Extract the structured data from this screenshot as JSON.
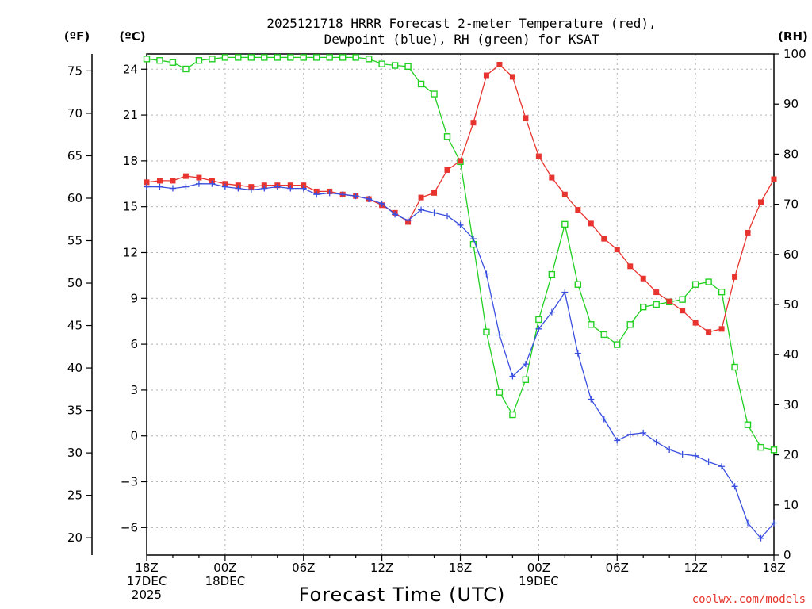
{
  "chart_data": {
    "type": "line",
    "title_lines": [
      "2025121718 HRRR Forecast 2-meter Temperature (red),",
      "Dewpoint (blue), RH (green) for KSAT"
    ],
    "xlabel": "Forecast Time (UTC)",
    "watermark": "coolwx.com/models",
    "units": {
      "fahrenheit": "(ºF)",
      "celsius": "(ºC)",
      "rh": "(RH)"
    },
    "x_range_hours": [
      0,
      48
    ],
    "celsius_axis": {
      "range": [
        -7.8,
        25
      ],
      "ticks": [
        24,
        21,
        18,
        15,
        12,
        9,
        6,
        3,
        0,
        -3,
        -6
      ]
    },
    "fahrenheit_axis": {
      "ticks": [
        75,
        70,
        65,
        60,
        55,
        50,
        45,
        40,
        35,
        30,
        25,
        20
      ]
    },
    "rh_axis": {
      "range": [
        0,
        100
      ],
      "ticks": [
        100,
        90,
        80,
        70,
        60,
        50,
        40,
        30,
        20,
        10,
        0
      ]
    },
    "x_ticks": [
      {
        "hour": 0,
        "lines": [
          "18Z",
          "17DEC",
          "2025"
        ]
      },
      {
        "hour": 6,
        "lines": [
          "00Z",
          "18DEC"
        ]
      },
      {
        "hour": 12,
        "lines": [
          "06Z"
        ]
      },
      {
        "hour": 18,
        "lines": [
          "12Z"
        ]
      },
      {
        "hour": 24,
        "lines": [
          "18Z"
        ]
      },
      {
        "hour": 30,
        "lines": [
          "00Z",
          "19DEC"
        ]
      },
      {
        "hour": 36,
        "lines": [
          "06Z"
        ]
      },
      {
        "hour": 42,
        "lines": [
          "12Z"
        ]
      },
      {
        "hour": 48,
        "lines": [
          "18Z"
        ]
      }
    ],
    "series": [
      {
        "name": "2-meter Temperature",
        "unit": "C",
        "axis": "celsius",
        "color": "#e8342f",
        "marker": "filled-square",
        "hours": [
          0,
          1,
          2,
          3,
          4,
          5,
          6,
          7,
          8,
          9,
          10,
          11,
          12,
          13,
          14,
          15,
          16,
          17,
          18,
          19,
          20,
          21,
          22,
          23,
          24,
          25,
          26,
          27,
          28,
          29,
          30,
          31,
          32,
          33,
          34,
          35,
          36,
          37,
          38,
          39,
          40,
          41,
          42,
          43,
          44,
          45,
          46,
          47,
          48
        ],
        "values": [
          16.6,
          16.7,
          16.7,
          17.0,
          16.9,
          16.7,
          16.5,
          16.4,
          16.3,
          16.4,
          16.4,
          16.4,
          16.4,
          16.0,
          16.0,
          15.8,
          15.7,
          15.5,
          15.1,
          14.6,
          14.0,
          15.6,
          15.9,
          17.4,
          18.0,
          20.5,
          23.6,
          24.3,
          23.5,
          20.8,
          18.3,
          16.9,
          15.8,
          14.8,
          13.9,
          12.9,
          12.2,
          11.1,
          10.3,
          9.4,
          8.8,
          8.2,
          7.4,
          6.8,
          7.0,
          10.4,
          13.3,
          15.3,
          16.8
        ]
      },
      {
        "name": "Dewpoint",
        "unit": "C",
        "axis": "celsius",
        "color": "#3a4fe0",
        "marker": "plus",
        "hours": [
          0,
          1,
          2,
          3,
          4,
          5,
          6,
          7,
          8,
          9,
          10,
          11,
          12,
          13,
          14,
          15,
          16,
          17,
          18,
          19,
          20,
          21,
          22,
          23,
          24,
          25,
          26,
          27,
          28,
          29,
          30,
          31,
          32,
          33,
          34,
          35,
          36,
          37,
          38,
          39,
          40,
          41,
          42,
          43,
          44,
          45,
          46,
          47,
          48
        ],
        "values": [
          16.3,
          16.3,
          16.2,
          16.3,
          16.5,
          16.5,
          16.3,
          16.2,
          16.1,
          16.2,
          16.3,
          16.2,
          16.2,
          15.8,
          15.9,
          15.8,
          15.7,
          15.5,
          15.2,
          14.5,
          14.1,
          14.8,
          14.6,
          14.4,
          13.8,
          12.9,
          10.6,
          6.6,
          3.9,
          4.7,
          7.0,
          8.1,
          9.4,
          5.4,
          2.4,
          1.1,
          -0.3,
          0.1,
          0.2,
          -0.4,
          -0.9,
          -1.2,
          -1.3,
          -1.7,
          -2.0,
          -3.3,
          -5.7,
          -6.7,
          -5.7
        ]
      },
      {
        "name": "RH",
        "unit": "%",
        "axis": "rh",
        "color": "#22d022",
        "marker": "open-square",
        "hours": [
          0,
          1,
          2,
          3,
          4,
          5,
          6,
          7,
          8,
          9,
          10,
          11,
          12,
          13,
          14,
          15,
          16,
          17,
          18,
          19,
          20,
          21,
          22,
          23,
          24,
          25,
          26,
          27,
          28,
          29,
          30,
          31,
          32,
          33,
          34,
          35,
          36,
          37,
          38,
          39,
          40,
          41,
          42,
          43,
          44,
          45,
          46,
          47,
          48
        ],
        "values": [
          99,
          98.7,
          98.3,
          97,
          98.7,
          99,
          99.3,
          99.3,
          99.3,
          99.3,
          99.3,
          99.3,
          99.3,
          99.3,
          99.3,
          99.3,
          99.3,
          99,
          98,
          97.7,
          97.5,
          94,
          92,
          83.5,
          78.5,
          62,
          44.5,
          32.5,
          28,
          35,
          47,
          56,
          66,
          54,
          46,
          44,
          42,
          46,
          49.5,
          50,
          50.5,
          51,
          54,
          54.5,
          52.5,
          37.5,
          26,
          21.5,
          21
        ]
      }
    ]
  }
}
